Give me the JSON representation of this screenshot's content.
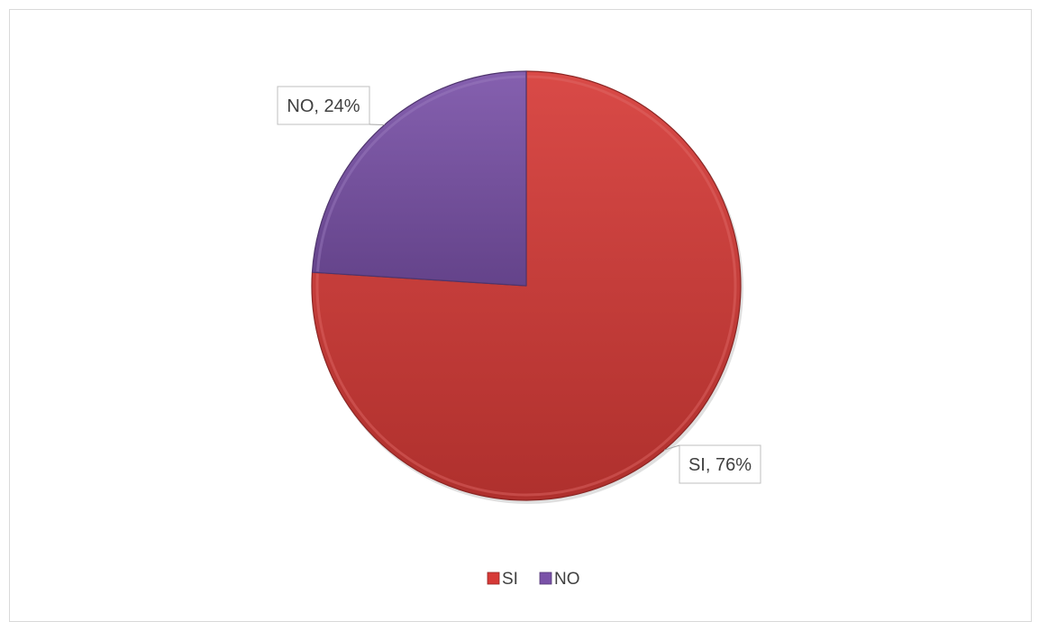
{
  "chart_data": {
    "type": "pie",
    "categories": [
      "SI",
      "NO"
    ],
    "values": [
      76,
      24
    ],
    "unit": "%",
    "data_labels": [
      "SI, 76%",
      "NO, 24%"
    ],
    "colors": [
      "#d63a37",
      "#7a52a8"
    ],
    "start_angle_deg": 0,
    "direction": "clockwise",
    "legend": {
      "position": "bottom",
      "entries": [
        "SI",
        "NO"
      ]
    },
    "style": "3d-bevel"
  }
}
